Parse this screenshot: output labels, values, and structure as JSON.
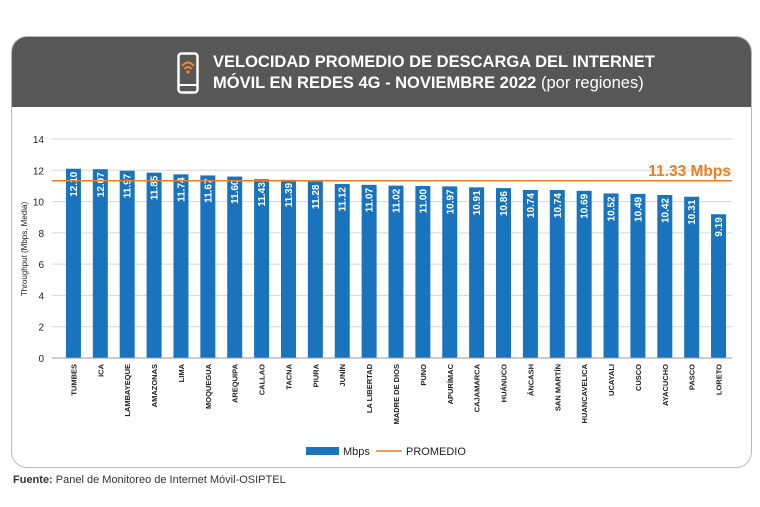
{
  "header": {
    "title_line1": "VELOCIDAD PROMEDIO DE DESCARGA DEL INTERNET",
    "title_line2": "MÓVIL EN REDES 4G - NOVIEMBRE 2022",
    "title_suffix": "(por regiones)",
    "icon": "smartphone-wifi-icon"
  },
  "chart_data": {
    "type": "bar",
    "title": "VELOCIDAD PROMEDIO DE DESCARGA DEL INTERNET MÓVIL EN REDES 4G - NOVIEMBRE 2022 (por regiones)",
    "ylabel": "Throughput (Mbps, Media)",
    "xlabel": "",
    "ylim": [
      0,
      14
    ],
    "yticks": [
      0,
      2,
      4,
      6,
      8,
      10,
      12,
      14
    ],
    "grid": true,
    "categories": [
      "TUMBES",
      "ICA",
      "LAMBAYEQUE",
      "AMAZONAS",
      "LIMA",
      "MOQUEGUA",
      "AREQUIPA",
      "CALLAO",
      "TACNA",
      "PIURA",
      "JUNÍN",
      "LA LIBERTAD",
      "MADRE DE DIOS",
      "PUNO",
      "APURÍMAC",
      "CAJAMARCA",
      "HUÁNUCO",
      "ÁNCASH",
      "SAN MARTÍN",
      "HUANCAVELICA",
      "UCAYALI",
      "CUSCO",
      "AYACUCHO",
      "PASCO",
      "LORETO"
    ],
    "series": [
      {
        "name": "Mbps",
        "color": "#1a74bd",
        "values": [
          12.1,
          12.07,
          11.97,
          11.85,
          11.74,
          11.67,
          11.6,
          11.43,
          11.39,
          11.28,
          11.12,
          11.07,
          11.02,
          11.0,
          10.97,
          10.91,
          10.86,
          10.74,
          10.74,
          10.69,
          10.52,
          10.49,
          10.42,
          10.31,
          9.19
        ],
        "labels": [
          "12.10",
          "12.07",
          "11.97",
          "11.85",
          "11.74",
          "11.67",
          "11.60",
          "11.43",
          "11.39",
          "11.28",
          "11.12",
          "11.07",
          "11.02",
          "11.00",
          "10.97",
          "10.91",
          "10.86",
          "10.74",
          "10.74",
          "10.69",
          "10.52",
          "10.49",
          "10.42",
          "10.31",
          "9.19"
        ]
      }
    ],
    "average": {
      "name": "PROMEDIO",
      "value": 11.33,
      "label": "11.33 Mbps",
      "color": "#ef7d22"
    },
    "legend": [
      "Mbps",
      "PROMEDIO"
    ],
    "legend_position": "bottom"
  },
  "source": {
    "label": "Fuente:",
    "text": "Panel de Monitoreo de Internet Móvil-OSIPTEL"
  }
}
